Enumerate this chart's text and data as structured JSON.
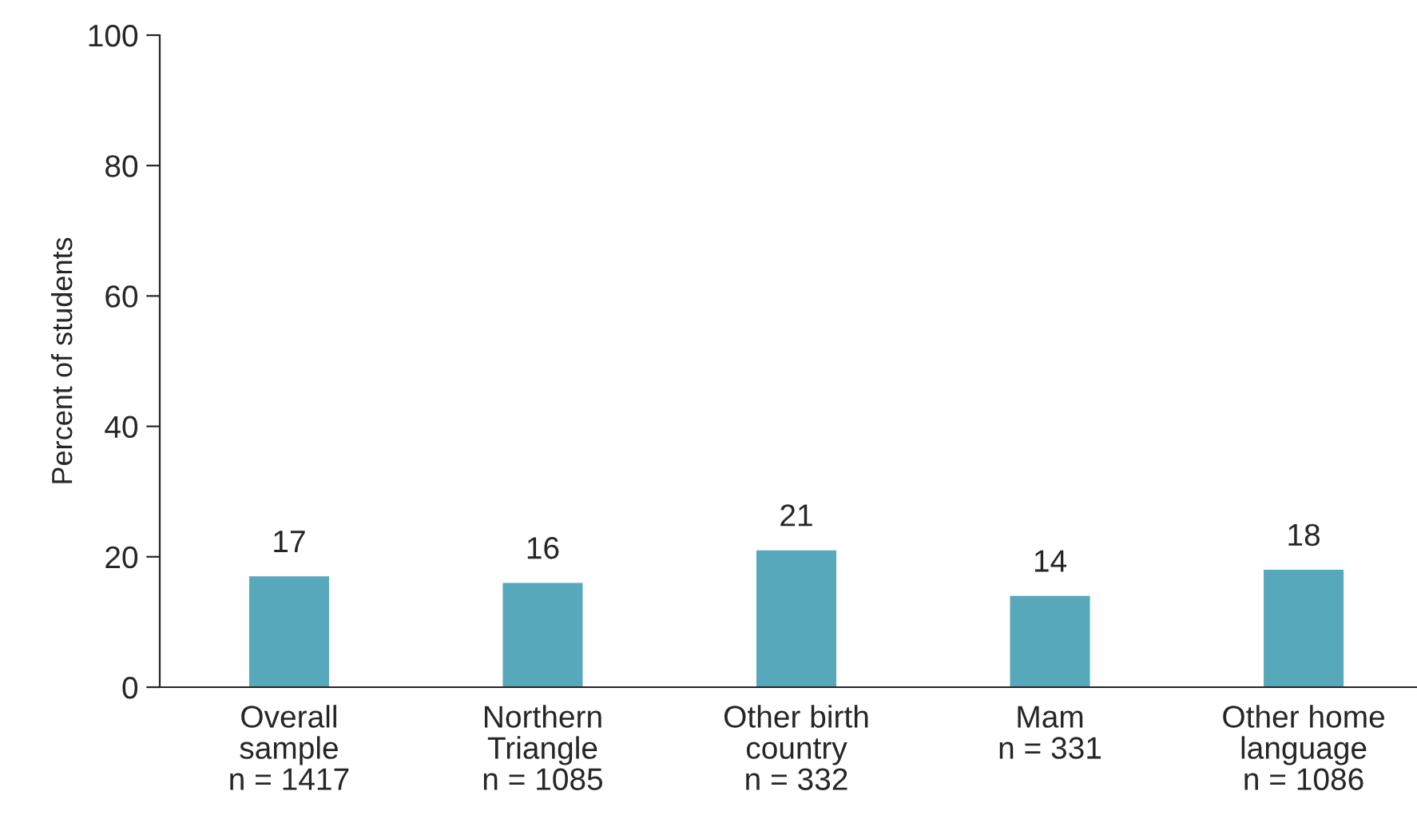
{
  "chart_data": {
    "type": "bar",
    "ylabel": "Percent of students",
    "categories": [
      "Overall\nsample\nn = 1417",
      "Northern\nTriangle\nn = 1085",
      "Other birth\ncountry\nn = 332",
      "Mam\nn = 331",
      "Other home\nlanguage\nn = 1086"
    ],
    "values": [
      17,
      16,
      21,
      14,
      18
    ],
    "color": "#58a8bb",
    "ylim": [
      0,
      100
    ],
    "yticks": [
      0,
      20,
      40,
      60,
      80,
      100
    ],
    "data_labels": true,
    "grid": false,
    "legend": false
  }
}
